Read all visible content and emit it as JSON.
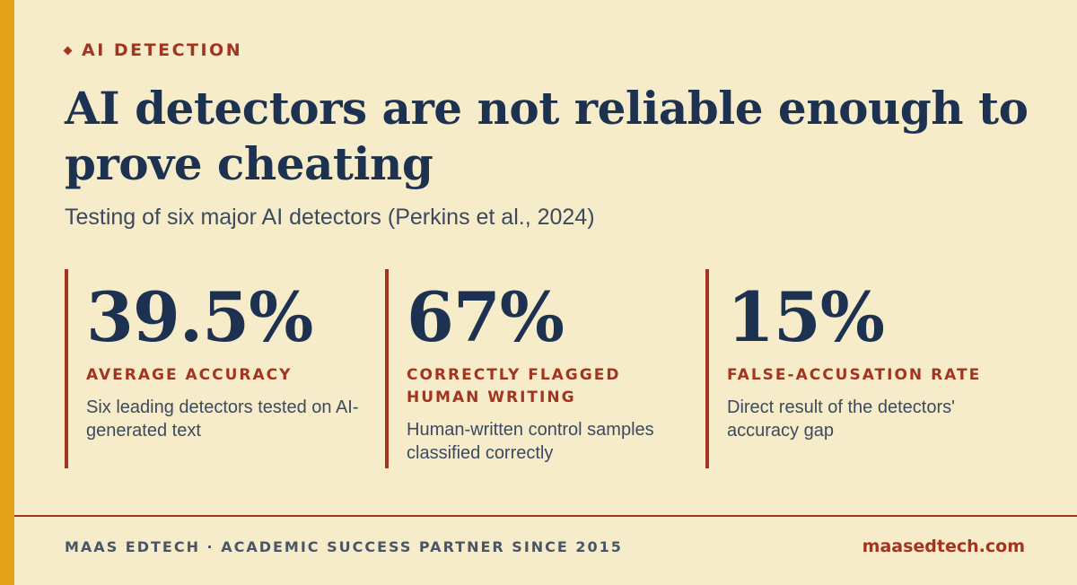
{
  "colors": {
    "background": "#f6ecca",
    "accent_bar": "#e3a21a",
    "accent_red": "#a3341f",
    "navy": "#1d3150",
    "body_text": "#3b4a5e"
  },
  "header": {
    "eyebrow_icon": "diamond-icon",
    "eyebrow": "AI DETECTION",
    "title": "AI detectors are not reliable enough to prove cheating",
    "subtitle": "Testing of six major AI detectors (Perkins et al., 2024)"
  },
  "stats": [
    {
      "value": "39.5%",
      "label": "AVERAGE ACCURACY",
      "description": "Six leading detectors tested on AI-generated text"
    },
    {
      "value": "67%",
      "label": "CORRECTLY FLAGGED HUMAN WRITING",
      "description": "Human-written control samples classified correctly"
    },
    {
      "value": "15%",
      "label": "FALSE-ACCUSATION RATE",
      "description": "Direct result of the detectors' accuracy gap"
    }
  ],
  "footer": {
    "tagline": "MAAS EDTECH · ACADEMIC SUCCESS PARTNER SINCE 2015",
    "website": "maasedtech.com"
  }
}
